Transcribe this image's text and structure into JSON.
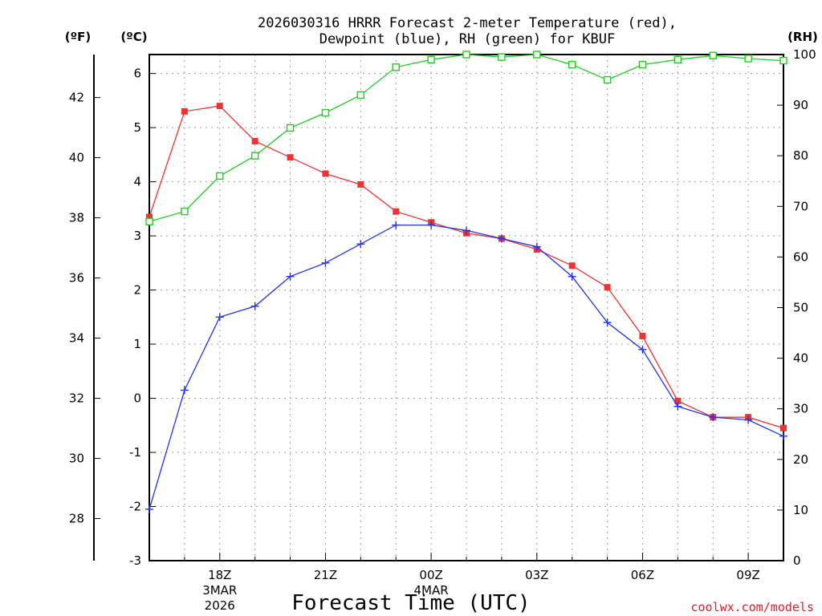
{
  "chart_data": {
    "type": "line",
    "title_line1": "2026030316 HRRR Forecast 2-meter Temperature (red),",
    "title_line2": "Dewpoint (blue), RH (green) for KBUF",
    "xlabel": "Forecast Time (UTC)",
    "credit": "coolwx.com/models",
    "unit_f": "(ºF)",
    "unit_c": "(ºC)",
    "unit_rh": "(RH)",
    "x_hours": [
      16,
      17,
      18,
      19,
      20,
      21,
      22,
      23,
      24,
      25,
      26,
      27,
      28,
      29,
      30,
      31,
      32,
      33,
      34
    ],
    "xlim": [
      16,
      34
    ],
    "x_ticks": [
      {
        "hour": 18,
        "lines": [
          "18Z",
          "3MAR",
          "2026"
        ]
      },
      {
        "hour": 21,
        "lines": [
          "21Z"
        ]
      },
      {
        "hour": 24,
        "lines": [
          "00Z",
          "4MAR"
        ]
      },
      {
        "hour": 27,
        "lines": [
          "03Z"
        ]
      },
      {
        "hour": 30,
        "lines": [
          "06Z"
        ]
      },
      {
        "hour": 33,
        "lines": [
          "09Z"
        ]
      }
    ],
    "ylim_c": [
      -3,
      6.35
    ],
    "yticks_c": [
      "-3",
      "-2",
      "-1",
      "0",
      "1",
      "2",
      "3",
      "4",
      "5",
      "6"
    ],
    "yticks_f": [
      "28",
      "30",
      "32",
      "34",
      "36",
      "38",
      "40",
      "42"
    ],
    "ylim_rh": [
      0,
      100
    ],
    "yticks_rh": [
      "0",
      "10",
      "20",
      "30",
      "40",
      "50",
      "60",
      "70",
      "80",
      "90",
      "100"
    ],
    "series": [
      {
        "name": "Temperature",
        "color": "#ee3333",
        "marker": "square-filled",
        "axis": "c",
        "values": [
          3.35,
          5.3,
          5.4,
          4.75,
          4.45,
          4.15,
          3.95,
          3.45,
          3.25,
          3.05,
          2.95,
          2.75,
          2.45,
          2.05,
          1.15,
          -0.05,
          -0.35,
          -0.35,
          -0.55
        ]
      },
      {
        "name": "Dewpoint",
        "color": "#2233ee",
        "marker": "plus",
        "axis": "c",
        "values": [
          -2.05,
          0.15,
          1.5,
          1.7,
          2.25,
          2.5,
          2.85,
          3.2,
          3.2,
          3.1,
          2.95,
          2.8,
          2.25,
          1.4,
          0.9,
          -0.15,
          -0.35,
          -0.4,
          -0.7
        ]
      },
      {
        "name": "RH",
        "color": "#22cc22",
        "marker": "square-open",
        "axis": "rh",
        "values": [
          67,
          69,
          76,
          80,
          85.5,
          88.5,
          92,
          97.5,
          99,
          100,
          99.5,
          100,
          98,
          95,
          98,
          99,
          99.8,
          99.2,
          98.8
        ]
      }
    ]
  }
}
